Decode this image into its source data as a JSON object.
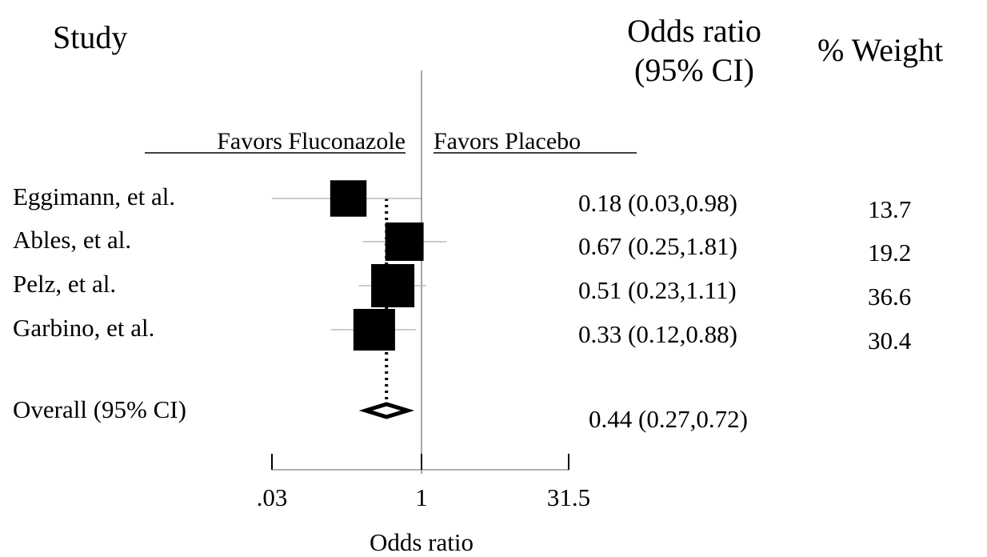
{
  "headers": {
    "study": "Study",
    "or_line1": "Odds ratio",
    "or_line2": "(95% CI)",
    "weight": "% Weight"
  },
  "favors": {
    "left": "Favors Fluconazole",
    "right": "Favors Placebo"
  },
  "chart_data": {
    "type": "forest",
    "scale": "log",
    "x_ticks": [
      {
        "value": 0.03,
        "label": ".03"
      },
      {
        "value": 1,
        "label": "1"
      },
      {
        "value": 31.5,
        "label": "31.5"
      }
    ],
    "xlabel": "Odds ratio",
    "reference_line": 1,
    "studies": [
      {
        "name": "Eggimann, et al.",
        "or": 0.18,
        "lo": 0.03,
        "hi": 0.98,
        "ci_text": "0.18 (0.03,0.98)",
        "weight": 13.7,
        "weight_text": "13.7"
      },
      {
        "name": "Ables, et al.",
        "or": 0.67,
        "lo": 0.25,
        "hi": 1.81,
        "ci_text": "0.67 (0.25,1.81)",
        "weight": 19.2,
        "weight_text": "19.2"
      },
      {
        "name": "Pelz, et al.",
        "or": 0.51,
        "lo": 0.23,
        "hi": 1.11,
        "ci_text": "0.51 (0.23,1.11)",
        "weight": 36.6,
        "weight_text": "36.6"
      },
      {
        "name": "Garbino, et al.",
        "or": 0.33,
        "lo": 0.12,
        "hi": 0.88,
        "ci_text": "0.33 (0.12,0.88)",
        "weight": 30.4,
        "weight_text": "30.4"
      }
    ],
    "overall": {
      "name": "Overall (95% CI)",
      "or": 0.44,
      "lo": 0.27,
      "hi": 0.72,
      "ci_text": "0.44 (0.27,0.72)"
    }
  }
}
